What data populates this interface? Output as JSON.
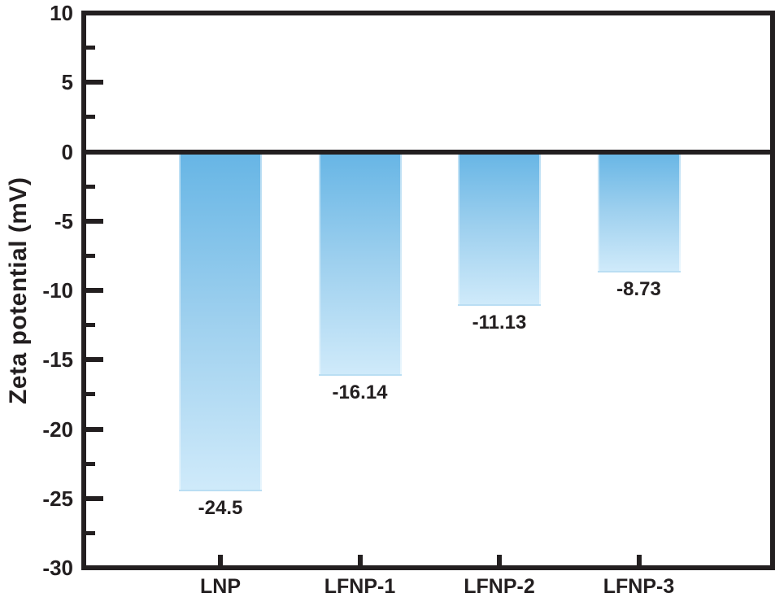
{
  "figure": {
    "background_color": "#ffffff",
    "axis_color": "#231f20"
  },
  "chart_data": {
    "type": "bar",
    "title": "",
    "xlabel": "",
    "ylabel": "Zeta potential (mV)",
    "categories": [
      "LNP",
      "LFNP-1",
      "LFNP-2",
      "LFNP-3"
    ],
    "values": [
      -24.5,
      -16.14,
      -11.13,
      -8.73
    ],
    "value_labels": [
      "-24.5",
      "-16.14",
      "-11.13",
      "-8.73"
    ],
    "ylim": [
      -30,
      10
    ],
    "yticks_major": [
      10,
      5,
      0,
      -5,
      -10,
      -15,
      -20,
      -25,
      -30
    ],
    "ytick_labels": [
      "10",
      "5",
      "0",
      "-5",
      "-10",
      "-15",
      "-20",
      "-25",
      "-30"
    ],
    "yticks_minor": [
      7.5,
      2.5,
      -2.5,
      -7.5,
      -12.5,
      -17.5,
      -22.5,
      -27.5
    ],
    "grid": false,
    "legend": null,
    "zero_baseline": true,
    "bar_gradient_top": "#66b5e5",
    "bar_gradient_mid": "#9ccfee",
    "bar_gradient_bottom": "#cfeafa",
    "frame_color": "#231f20"
  }
}
